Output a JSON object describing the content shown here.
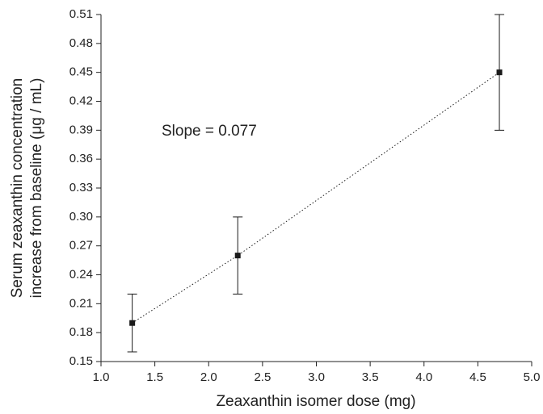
{
  "chart_data": {
    "type": "scatter",
    "xlabel": "Zeaxanthin isomer dose (mg)",
    "ylabel": [
      "Serum zeaxanthin concentration",
      "increase from baseline (μg / mL)"
    ],
    "annotation": "Slope = 0.077",
    "x": [
      1.29,
      2.27,
      4.7
    ],
    "values": [
      0.19,
      0.26,
      0.45
    ],
    "errors": [
      0.03,
      0.04,
      0.06
    ],
    "color": "#1a1a1a",
    "line_style": "dotted",
    "xlim": [
      1,
      5
    ],
    "xticks": [
      {
        "value": 1,
        "label": "1.0"
      },
      1.5,
      {
        "value": 2,
        "label": "2.0"
      },
      2.5,
      {
        "value": 3,
        "label": "3.0"
      },
      3.5,
      {
        "value": 4,
        "label": "4.0"
      },
      4.5,
      {
        "value": 5,
        "label": "5.0"
      }
    ],
    "ylim": [
      0.15,
      0.51
    ],
    "yticks": [
      0.15,
      0.18,
      0.21,
      0.24,
      0.27,
      {
        "value": 0.3,
        "label": "0.30"
      },
      0.33,
      0.36,
      0.39,
      0.42,
      0.45,
      0.48,
      0.51
    ],
    "grid": false
  }
}
